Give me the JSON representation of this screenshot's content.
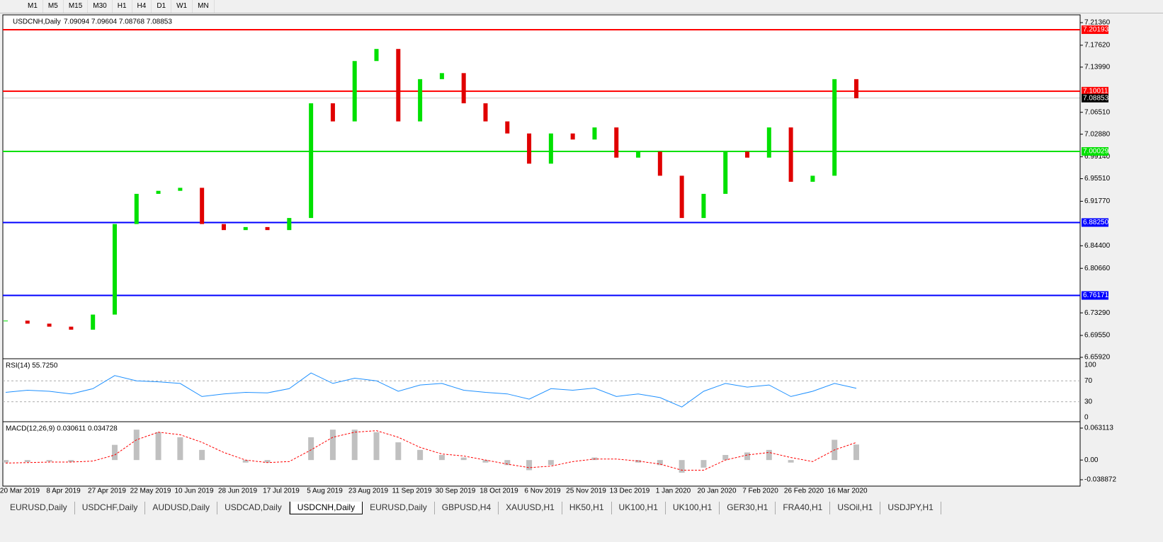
{
  "toolbar": {
    "timeframes": [
      "M1",
      "M5",
      "M15",
      "M30",
      "H1",
      "H4",
      "D1",
      "W1",
      "MN"
    ]
  },
  "chart_data": {
    "type": "candlestick",
    "symbol": "USDCNH,Daily",
    "ohlc": "7.09094 7.09604 7.08768 7.08853",
    "closes": [
      6.72,
      6.715,
      6.71,
      6.705,
      6.73,
      6.88,
      6.93,
      6.935,
      6.94,
      6.88,
      6.87,
      6.875,
      6.87,
      6.89,
      7.08,
      7.05,
      7.15,
      7.17,
      7.05,
      7.12,
      7.13,
      7.08,
      7.05,
      7.03,
      6.98,
      7.03,
      7.02,
      7.04,
      6.99,
      7.0,
      6.96,
      6.89,
      6.93,
      7.0,
      6.99,
      7.04,
      6.95,
      6.96,
      7.12,
      7.08853
    ],
    "up_color": "#00e000",
    "down_color": "#e00000",
    "ylim": [
      6.6592,
      7.2136
    ],
    "yticks": [
      {
        "value": 7.2136,
        "label": "7.21360"
      },
      {
        "value": 7.1762,
        "label": "7.17620"
      },
      {
        "value": 7.1399,
        "label": "7.13990"
      },
      {
        "value": 7.0651,
        "label": "7.06510"
      },
      {
        "value": 7.0288,
        "label": "7.02880"
      },
      {
        "value": 6.9914,
        "label": "6.99140"
      },
      {
        "value": 6.9551,
        "label": "6.95510"
      },
      {
        "value": 6.9177,
        "label": "6.91770"
      },
      {
        "value": 6.844,
        "label": "6.84400"
      },
      {
        "value": 6.8066,
        "label": "6.80660"
      },
      {
        "value": 6.7329,
        "label": "6.73290"
      },
      {
        "value": 6.6955,
        "label": "6.69550"
      },
      {
        "value": 6.6592,
        "label": "6.65920"
      }
    ],
    "hlines": [
      {
        "value": 7.20193,
        "color": "#ff0000"
      },
      {
        "value": 7.10011,
        "color": "#ff0000"
      },
      {
        "value": 7.00029,
        "color": "#00e000"
      },
      {
        "value": 6.8825,
        "label": "6.88250",
        "color": "#0000ff"
      },
      {
        "value": 6.76171,
        "color": "#0000ff"
      },
      {
        "value": 7.08853,
        "color": "#000000"
      }
    ],
    "date_labels": [
      "20 Mar 2019",
      "8 Apr 2019",
      "27 Apr 2019",
      "22 May 2019",
      "10 Jun 2019",
      "28 Jun 2019",
      "17 Jul 2019",
      "5 Aug 2019",
      "23 Aug 2019",
      "11 Sep 2019",
      "30 Sep 2019",
      "18 Oct 2019",
      "6 Nov 2019",
      "25 Nov 2019",
      "13 Dec 2019",
      "1 Jan 2020",
      "20 Jan 2020",
      "7 Feb 2020",
      "26 Feb 2020",
      "16 Mar 2020"
    ]
  },
  "rsi": {
    "label": "RSI(14) 55.7250",
    "color": "#1e90ff",
    "ylim": [
      0,
      100
    ],
    "yticks": [
      100,
      70,
      30,
      0
    ],
    "values": [
      48,
      52,
      50,
      45,
      55,
      80,
      70,
      68,
      65,
      40,
      45,
      48,
      47,
      55,
      85,
      65,
      75,
      70,
      50,
      62,
      65,
      52,
      48,
      45,
      35,
      55,
      52,
      56,
      40,
      45,
      38,
      20,
      50,
      65,
      58,
      62,
      40,
      50,
      65,
      55.725
    ]
  },
  "macd": {
    "label": "MACD(12,26,9) 0.030611 0.034728",
    "ylim": [
      -0.038872,
      0.063113
    ],
    "yticks": [
      0.063113,
      {
        "value": 0,
        "label": "0.00"
      },
      -0.038872
    ],
    "hist_color": "#c0c0c0",
    "signal_color": "#ff0000",
    "histogram": [
      -0.005,
      -0.004,
      -0.003,
      -0.004,
      0,
      0.03,
      0.06,
      0.055,
      0.045,
      0.02,
      0,
      -0.005,
      -0.005,
      0,
      0.045,
      0.06,
      0.06,
      0.055,
      0.035,
      0.02,
      0.01,
      0.005,
      -0.005,
      -0.01,
      -0.02,
      -0.01,
      0,
      0.005,
      0,
      -0.005,
      -0.01,
      -0.025,
      -0.015,
      0.01,
      0.015,
      0.02,
      -0.005,
      0,
      0.04,
      0.030611
    ],
    "signal": [
      -0.006,
      -0.005,
      -0.004,
      -0.004,
      -0.002,
      0.01,
      0.04,
      0.055,
      0.05,
      0.035,
      0.015,
      0,
      -0.005,
      -0.003,
      0.02,
      0.045,
      0.055,
      0.058,
      0.045,
      0.025,
      0.012,
      0.008,
      0,
      -0.008,
      -0.015,
      -0.012,
      -0.003,
      0.002,
      0.002,
      -0.002,
      -0.008,
      -0.02,
      -0.02,
      0,
      0.01,
      0.015,
      0.005,
      -0.003,
      0.02,
      0.034728
    ]
  },
  "tabs": {
    "items": [
      "EURUSD,Daily",
      "USDCHF,Daily",
      "AUDUSD,Daily",
      "USDCAD,Daily",
      "USDCNH,Daily",
      "EURUSD,Daily",
      "GBPUSD,H4",
      "XAUUSD,H1",
      "HK50,H1",
      "UK100,H1",
      "UK100,H1",
      "GER30,H1",
      "FRA40,H1",
      "USOil,H1",
      "USDJPY,H1"
    ],
    "active": 4
  }
}
